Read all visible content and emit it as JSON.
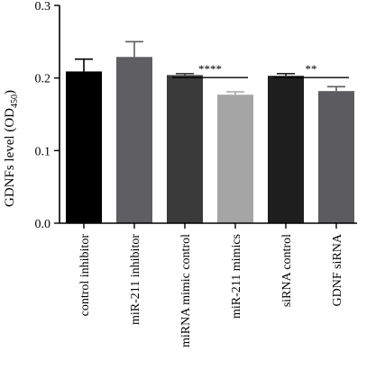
{
  "chart_data": {
    "type": "bar",
    "ylabel_main": "GDNFs level (OD",
    "ylabel_sub": "450",
    "ylabel_close": ")",
    "ylim": [
      0.0,
      0.3
    ],
    "yticks": [
      "0.0",
      "0.1",
      "0.2",
      "0.3"
    ],
    "categories": [
      "control inhibitor",
      "miR-211 inhibitor",
      "miRNA mimic control",
      "miR-211 mimics",
      "siRNA control",
      "GDNF siRNA"
    ],
    "values": [
      0.209,
      0.229,
      0.204,
      0.177,
      0.203,
      0.182
    ],
    "errors": [
      0.017,
      0.021,
      0.002,
      0.004,
      0.003,
      0.006
    ],
    "bar_colors": [
      "#000000",
      "#5f5f63",
      "#3a3a3a",
      "#a5a5a5",
      "#1e1e1e",
      "#5c5c60"
    ],
    "significance": [
      {
        "from": 2,
        "to": 3,
        "label": "****",
        "y": 0.213
      },
      {
        "from": 4,
        "to": 5,
        "label": "**",
        "y": 0.213
      }
    ],
    "grid": false,
    "legend": "none"
  }
}
